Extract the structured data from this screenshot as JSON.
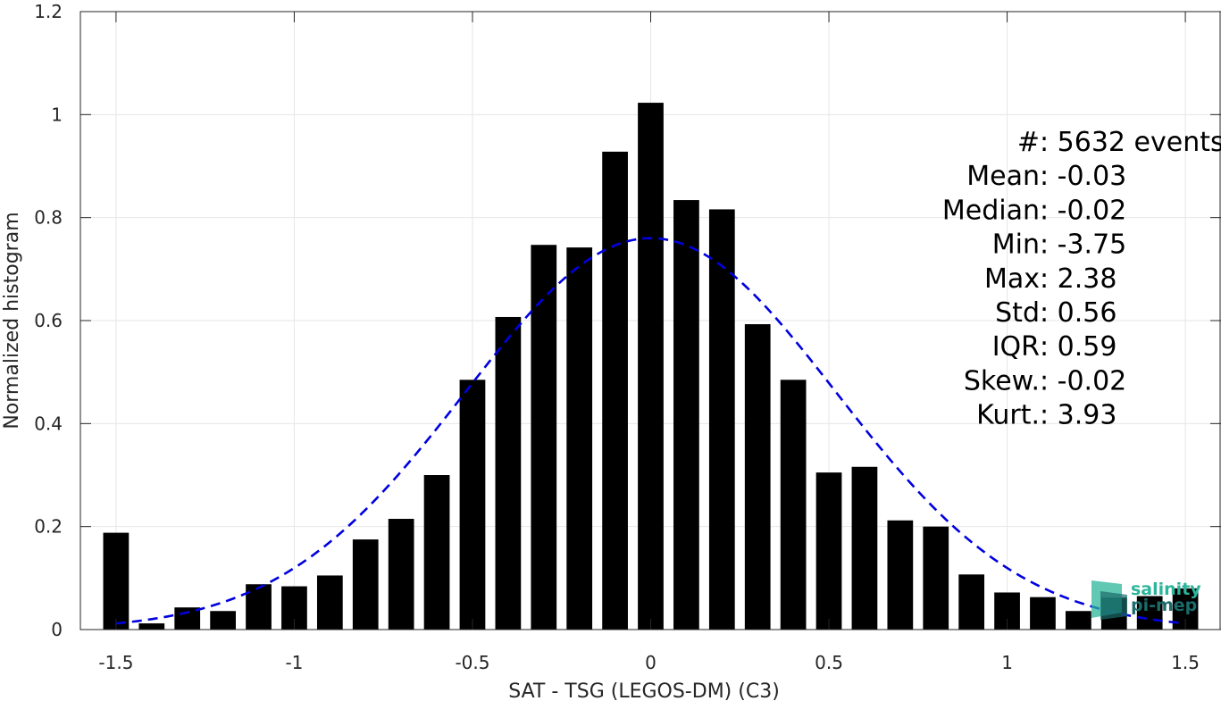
{
  "chart_data": {
    "type": "bar",
    "xlabel": "SAT - TSG (LEGOS-DM) (C3)",
    "ylabel": "Normalized histogram",
    "xlim": [
      -1.6,
      1.6
    ],
    "ylim": [
      0,
      1.2
    ],
    "xticks": [
      -1.5,
      -1,
      -0.5,
      0,
      0.5,
      1,
      1.5
    ],
    "xtick_labels": [
      "-1.5",
      "-1",
      "-0.5",
      "0",
      "0.5",
      "1",
      "1.5"
    ],
    "yticks": [
      0,
      0.2,
      0.4,
      0.6,
      0.8,
      1,
      1.2
    ],
    "ytick_labels": [
      "0",
      "0.2",
      "0.4",
      "0.6",
      "0.8",
      "1",
      "1.2"
    ],
    "grid": true,
    "bar_color": "#000000",
    "bars": {
      "x": [
        -1.5,
        -1.4,
        -1.3,
        -1.2,
        -1.1,
        -1.0,
        -0.9,
        -0.8,
        -0.7,
        -0.6,
        -0.5,
        -0.4,
        -0.3,
        -0.2,
        -0.1,
        0.0,
        0.1,
        0.2,
        0.3,
        0.4,
        0.5,
        0.6,
        0.7,
        0.8,
        0.9,
        1.0,
        1.1,
        1.2,
        1.3,
        1.4,
        1.5
      ],
      "values": [
        0.188,
        0.012,
        0.043,
        0.036,
        0.088,
        0.084,
        0.105,
        0.175,
        0.215,
        0.3,
        0.485,
        0.607,
        0.747,
        0.742,
        0.928,
        1.023,
        0.834,
        0.816,
        0.593,
        0.485,
        0.305,
        0.316,
        0.212,
        0.2,
        0.107,
        0.072,
        0.063,
        0.036,
        0.062,
        0.065,
        0.08
      ]
    },
    "fit_curve": {
      "type": "gaussian",
      "style": "dashed",
      "color": "#0000e0",
      "mean": 0.0,
      "sigma": 0.52,
      "peak": 0.76,
      "x_range": [
        -1.5,
        1.5
      ]
    }
  },
  "stats": [
    {
      "label": "#  ",
      "value": "5632 events"
    },
    {
      "label": "Mean",
      "value": "-0.03"
    },
    {
      "label": "Median",
      "value": "-0.02"
    },
    {
      "label": "Min",
      "value": "-3.75"
    },
    {
      "label": "Max",
      "value": "2.38"
    },
    {
      "label": "Std",
      "value": "0.56"
    },
    {
      "label": "IQR",
      "value": "0.59"
    },
    {
      "label": "Skew.",
      "value": "-0.02"
    },
    {
      "label": "Kurt.",
      "value": "3.93"
    }
  ],
  "logo": {
    "line1": "salinity",
    "line2": "pi-mep",
    "color1": "#2bb59a",
    "color2": "#1b6b6b"
  }
}
